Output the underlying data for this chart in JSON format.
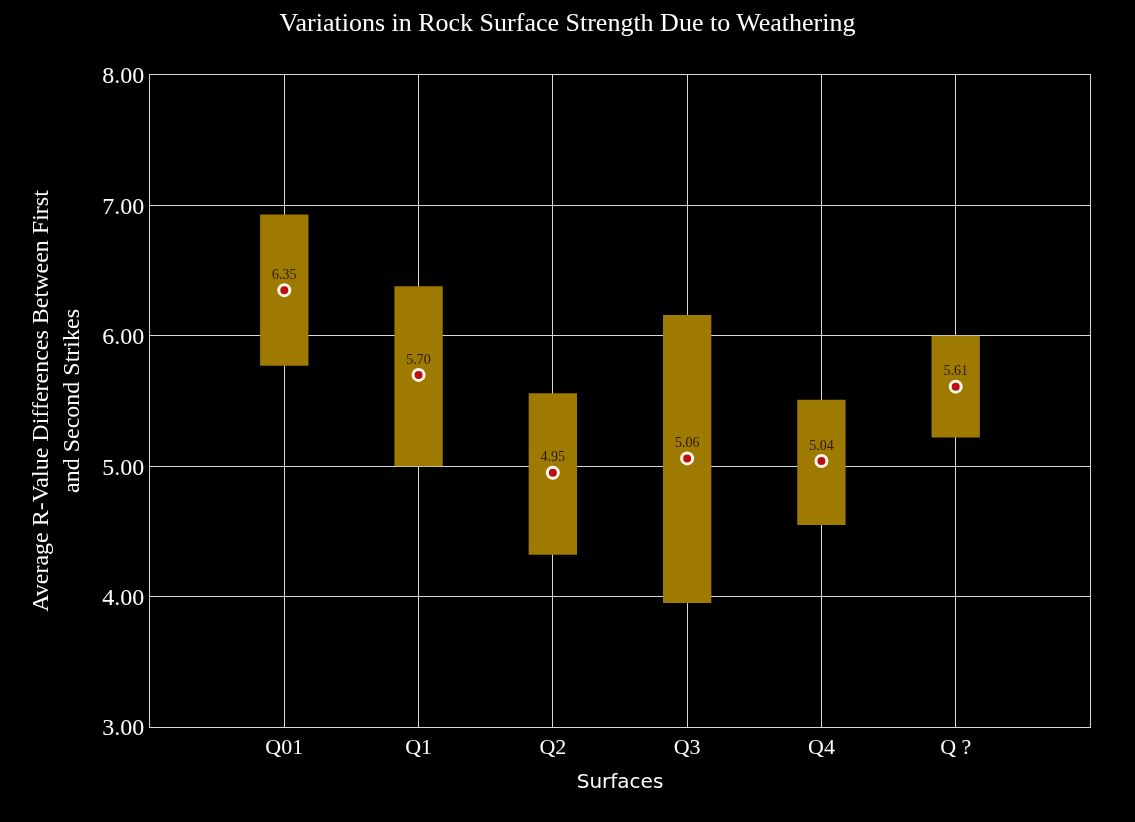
{
  "chart_data": {
    "type": "bar",
    "title": "Variations in Rock Surface Strength Due to Weathering",
    "xlabel": "Surfaces",
    "ylabel": "Average R-Value Differences Between First and Second Strikes",
    "categories": [
      "Q01",
      "Q1",
      "Q2",
      "Q3",
      "Q4",
      "Q ?"
    ],
    "series": [
      {
        "color": "#9e7a00",
        "base": [
          5.77,
          5.0,
          4.32,
          3.95,
          4.55,
          5.22
        ],
        "values": [
          1.16,
          1.38,
          1.24,
          2.21,
          0.96,
          0.78
        ]
      },
      {
        "type": "scatter",
        "color": "#b81010",
        "marker": "circle",
        "x": [
          "Q01",
          "Q1",
          "Q2",
          "Q3",
          "Q4",
          "Q ?"
        ],
        "values": [
          6.35,
          5.7,
          4.95,
          5.06,
          5.04,
          5.61
        ],
        "value_labels": [
          "6.35",
          "5.70",
          "4.95",
          "5.06",
          "5.04",
          "5.61"
        ]
      }
    ],
    "ylim": [
      3,
      8
    ],
    "yticks": [
      {
        "value": 3,
        "label": "3.00"
      },
      {
        "value": 4,
        "label": "4.00"
      },
      {
        "value": 5,
        "label": "5.00"
      },
      {
        "value": 6,
        "label": "6.00"
      },
      {
        "value": 7,
        "label": "7.00"
      },
      {
        "value": 8,
        "label": "8.00"
      }
    ],
    "grid": true
  }
}
